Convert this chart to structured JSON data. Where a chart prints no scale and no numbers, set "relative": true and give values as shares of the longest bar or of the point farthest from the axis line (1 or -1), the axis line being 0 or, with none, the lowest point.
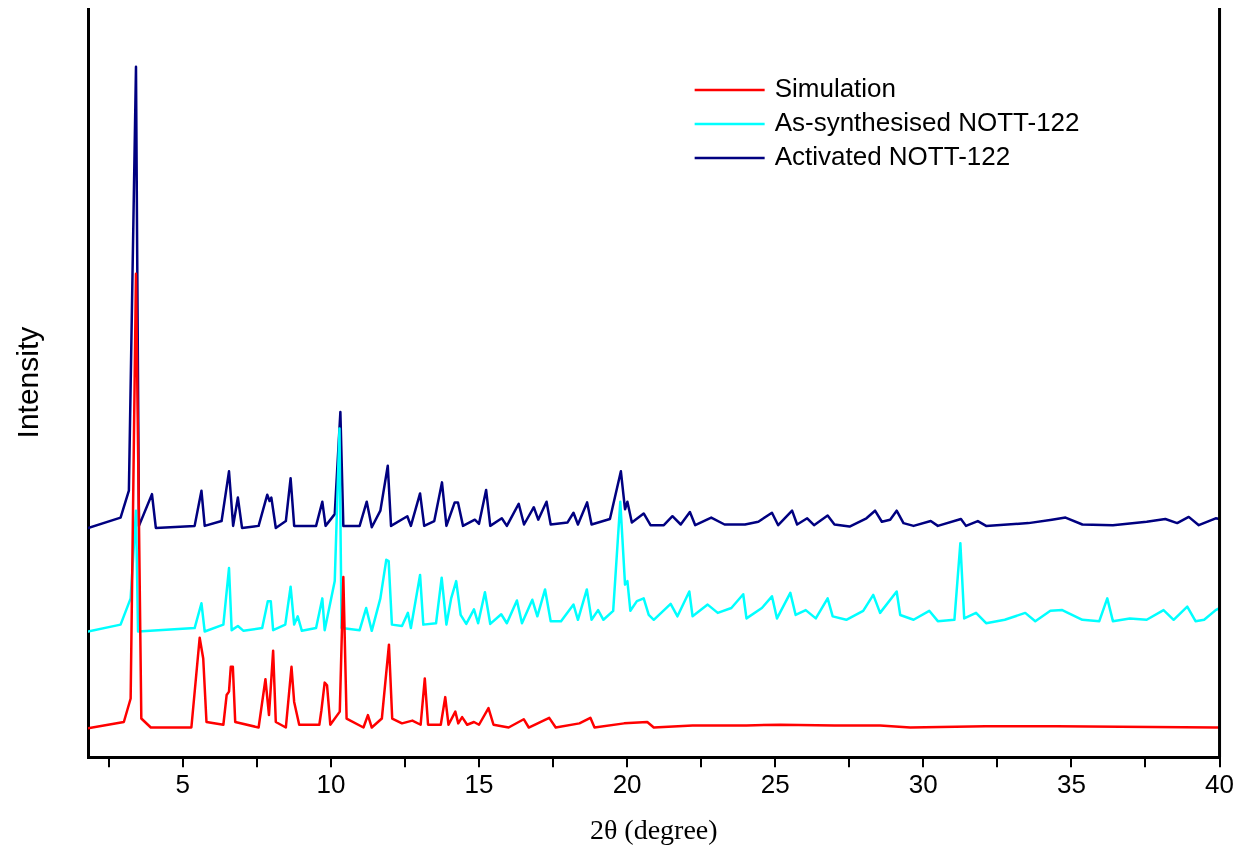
{
  "chart_data": {
    "type": "line",
    "xlabel": "2θ (degree)",
    "ylabel": "Intensity",
    "relative": true,
    "legend": "top right",
    "marker": "none",
    "line_style": "solid",
    "grid": false,
    "xlim": [
      1.8,
      40
    ],
    "xticks": [
      {
        "value": 2.5,
        "label": null
      },
      5,
      {
        "value": 7.5,
        "label": null
      },
      10,
      {
        "value": 12.5,
        "label": null
      },
      15,
      {
        "value": 17.5,
        "label": null
      },
      20,
      {
        "value": 22.5,
        "label": null
      },
      25,
      {
        "value": 27.5,
        "label": null
      },
      30,
      {
        "value": 32.5,
        "label": null
      },
      35,
      {
        "value": 37.5,
        "label": null
      },
      40
    ],
    "series": [
      {
        "name": "Simulation",
        "color": "#ff0000",
        "x": [
          1.8,
          3.01,
          3.24,
          3.42,
          3.6,
          3.92,
          5.29,
          5.57,
          5.69,
          5.8,
          6.37,
          6.48,
          6.56,
          6.62,
          6.69,
          6.77,
          7.56,
          7.79,
          7.91,
          8.05,
          8.14,
          8.48,
          8.67,
          8.76,
          8.93,
          9.61,
          9.68,
          9.79,
          9.87,
          9.98,
          10.3,
          10.42,
          10.53,
          11.1,
          11.25,
          11.38,
          11.72,
          11.96,
          12.07,
          12.4,
          12.75,
          13.03,
          13.17,
          13.28,
          13.71,
          13.86,
          13.97,
          14.2,
          14.3,
          14.43,
          14.6,
          14.83,
          15.0,
          15.32,
          15.49,
          16.0,
          16.51,
          16.68,
          17.37,
          17.59,
          18.39,
          18.76,
          18.9,
          19.9,
          20.68,
          20.9,
          22.21,
          24.03,
          25.17,
          27.0,
          28.54,
          29.56,
          32.1,
          34.5,
          39.87,
          40
        ],
        "values": [
          0.042,
          0.051,
          0.085,
          0.7,
          0.056,
          0.043,
          0.043,
          0.173,
          0.143,
          0.051,
          0.047,
          0.09,
          0.095,
          0.131,
          0.131,
          0.051,
          0.043,
          0.113,
          0.061,
          0.154,
          0.051,
          0.043,
          0.131,
          0.08,
          0.047,
          0.047,
          0.068,
          0.108,
          0.104,
          0.047,
          0.066,
          0.261,
          0.056,
          0.043,
          0.061,
          0.043,
          0.056,
          0.163,
          0.056,
          0.049,
          0.053,
          0.047,
          0.114,
          0.047,
          0.047,
          0.087,
          0.047,
          0.066,
          0.049,
          0.058,
          0.047,
          0.051,
          0.047,
          0.071,
          0.047,
          0.043,
          0.055,
          0.043,
          0.057,
          0.043,
          0.049,
          0.057,
          0.043,
          0.049,
          0.051,
          0.043,
          0.046,
          0.046,
          0.047,
          0.046,
          0.046,
          0.043,
          0.045,
          0.045,
          0.043,
          0.043
        ]
      },
      {
        "name": "As-synthesised NOTT-122",
        "color": "#00ffff",
        "x": [
          1.8,
          2.9,
          3.24,
          3.42,
          3.49,
          5.4,
          5.63,
          5.74,
          6.37,
          6.56,
          6.65,
          6.86,
          7.05,
          7.68,
          7.87,
          7.97,
          8.05,
          8.46,
          8.64,
          8.76,
          8.88,
          9.02,
          9.5,
          9.71,
          9.79,
          10.13,
          10.29,
          10.36,
          10.97,
          11.19,
          11.38,
          11.67,
          11.87,
          11.95,
          12.06,
          12.4,
          12.6,
          12.7,
          13.01,
          13.12,
          13.55,
          13.74,
          13.9,
          14.06,
          14.23,
          14.38,
          14.57,
          14.83,
          14.97,
          15.2,
          15.38,
          15.75,
          15.94,
          16.28,
          16.45,
          16.8,
          16.97,
          17.23,
          17.42,
          17.77,
          18.19,
          18.34,
          18.64,
          18.8,
          19.02,
          19.2,
          19.53,
          19.77,
          19.93,
          20.01,
          20.11,
          20.33,
          20.56,
          20.73,
          20.9,
          21.47,
          21.7,
          22.1,
          22.21,
          22.72,
          23.06,
          23.52,
          23.92,
          24.03,
          24.55,
          24.89,
          25.06,
          25.51,
          25.69,
          26.03,
          26.37,
          26.77,
          26.94,
          27.4,
          27.97,
          28.31,
          28.54,
          29.1,
          29.22,
          29.67,
          30.2,
          30.49,
          31.05,
          31.25,
          31.38,
          31.78,
          32.12,
          32.75,
          33.44,
          33.78,
          34.29,
          34.69,
          35.37,
          35.94,
          36.21,
          36.4,
          36.97,
          37.54,
          38.11,
          38.45,
          38.91,
          39.19,
          39.48,
          39.87,
          40
        ],
        "values": [
          0.182,
          0.192,
          0.23,
          0.357,
          0.182,
          0.187,
          0.223,
          0.182,
          0.192,
          0.274,
          0.184,
          0.19,
          0.183,
          0.187,
          0.226,
          0.226,
          0.184,
          0.192,
          0.247,
          0.192,
          0.204,
          0.183,
          0.187,
          0.23,
          0.184,
          0.255,
          0.476,
          0.187,
          0.184,
          0.216,
          0.183,
          0.23,
          0.286,
          0.284,
          0.192,
          0.19,
          0.209,
          0.187,
          0.264,
          0.192,
          0.194,
          0.26,
          0.192,
          0.23,
          0.255,
          0.206,
          0.193,
          0.214,
          0.194,
          0.239,
          0.193,
          0.207,
          0.194,
          0.227,
          0.194,
          0.228,
          0.204,
          0.243,
          0.197,
          0.197,
          0.221,
          0.199,
          0.243,
          0.199,
          0.213,
          0.199,
          0.212,
          0.37,
          0.25,
          0.255,
          0.212,
          0.226,
          0.23,
          0.206,
          0.199,
          0.222,
          0.204,
          0.24,
          0.204,
          0.221,
          0.209,
          0.216,
          0.236,
          0.201,
          0.216,
          0.233,
          0.201,
          0.238,
          0.206,
          0.213,
          0.201,
          0.23,
          0.204,
          0.199,
          0.212,
          0.235,
          0.209,
          0.24,
          0.206,
          0.199,
          0.212,
          0.197,
          0.199,
          0.31,
          0.201,
          0.209,
          0.194,
          0.199,
          0.209,
          0.197,
          0.212,
          0.213,
          0.199,
          0.197,
          0.23,
          0.197,
          0.201,
          0.199,
          0.213,
          0.199,
          0.218,
          0.197,
          0.199,
          0.213,
          0.216
        ]
      },
      {
        "name": "Activated NOTT-122",
        "color": "#000080",
        "x": [
          1.8,
          2.9,
          3.18,
          3.42,
          3.52,
          3.96,
          4.09,
          5.4,
          5.63,
          5.74,
          6.31,
          6.56,
          6.7,
          6.86,
          7.0,
          7.56,
          7.85,
          7.93,
          7.99,
          8.14,
          8.48,
          8.64,
          8.76,
          9.5,
          9.71,
          9.82,
          10.13,
          10.32,
          10.42,
          10.97,
          11.21,
          11.38,
          11.67,
          11.92,
          12.03,
          12.58,
          12.7,
          13.01,
          13.15,
          13.49,
          13.75,
          13.9,
          14.18,
          14.29,
          14.46,
          14.86,
          15.0,
          15.24,
          15.38,
          15.77,
          15.94,
          16.34,
          16.52,
          16.85,
          17.0,
          17.28,
          17.42,
          17.99,
          18.19,
          18.34,
          18.65,
          18.8,
          19.42,
          19.79,
          19.93,
          20.01,
          20.16,
          20.56,
          20.79,
          21.24,
          21.53,
          21.81,
          22.12,
          22.3,
          22.84,
          23.29,
          23.98,
          24.43,
          24.89,
          25.1,
          25.57,
          25.74,
          26.08,
          26.31,
          26.77,
          27.0,
          27.51,
          28.08,
          28.37,
          28.6,
          28.88,
          29.1,
          29.33,
          29.67,
          30.25,
          30.49,
          31.27,
          31.44,
          31.84,
          32.12,
          33.55,
          34.34,
          34.8,
          35.37,
          36.4,
          37.54,
          38.17,
          38.57,
          38.96,
          39.3,
          39.87,
          40
        ],
        "values": [
          0.332,
          0.347,
          0.386,
          1.0,
          0.335,
          0.381,
          0.332,
          0.335,
          0.386,
          0.335,
          0.342,
          0.414,
          0.335,
          0.376,
          0.332,
          0.335,
          0.38,
          0.371,
          0.376,
          0.332,
          0.342,
          0.404,
          0.335,
          0.335,
          0.37,
          0.335,
          0.352,
          0.5,
          0.335,
          0.335,
          0.37,
          0.333,
          0.357,
          0.422,
          0.335,
          0.349,
          0.335,
          0.382,
          0.335,
          0.342,
          0.398,
          0.335,
          0.369,
          0.369,
          0.335,
          0.344,
          0.338,
          0.387,
          0.335,
          0.346,
          0.335,
          0.367,
          0.337,
          0.362,
          0.344,
          0.37,
          0.337,
          0.34,
          0.354,
          0.337,
          0.369,
          0.337,
          0.345,
          0.414,
          0.359,
          0.37,
          0.34,
          0.353,
          0.336,
          0.336,
          0.349,
          0.337,
          0.355,
          0.336,
          0.347,
          0.337,
          0.337,
          0.341,
          0.354,
          0.336,
          0.357,
          0.337,
          0.346,
          0.336,
          0.35,
          0.337,
          0.334,
          0.346,
          0.357,
          0.341,
          0.344,
          0.357,
          0.339,
          0.335,
          0.342,
          0.335,
          0.345,
          0.335,
          0.342,
          0.335,
          0.339,
          0.344,
          0.347,
          0.337,
          0.336,
          0.341,
          0.345,
          0.339,
          0.348,
          0.336,
          0.346,
          0.345
        ]
      }
    ]
  }
}
